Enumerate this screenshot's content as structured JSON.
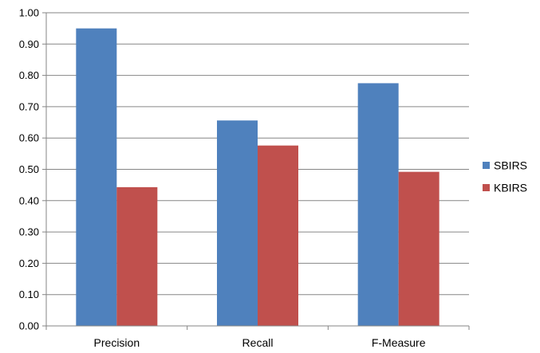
{
  "chart_data": {
    "type": "bar",
    "categories": [
      "Precision",
      "Recall",
      "F-Measure"
    ],
    "series": [
      {
        "name": "SBIRS",
        "values": [
          0.95,
          0.656,
          0.775
        ],
        "color": "#4f81bd"
      },
      {
        "name": "KBIRS",
        "values": [
          0.443,
          0.576,
          0.492
        ],
        "color": "#c0504d"
      }
    ],
    "y_ticks": [
      "0.00",
      "0.10",
      "0.20",
      "0.30",
      "0.40",
      "0.50",
      "0.60",
      "0.70",
      "0.80",
      "0.90",
      "1.00"
    ],
    "ylim": [
      0,
      1
    ],
    "grid": true,
    "legend_position": "right"
  }
}
